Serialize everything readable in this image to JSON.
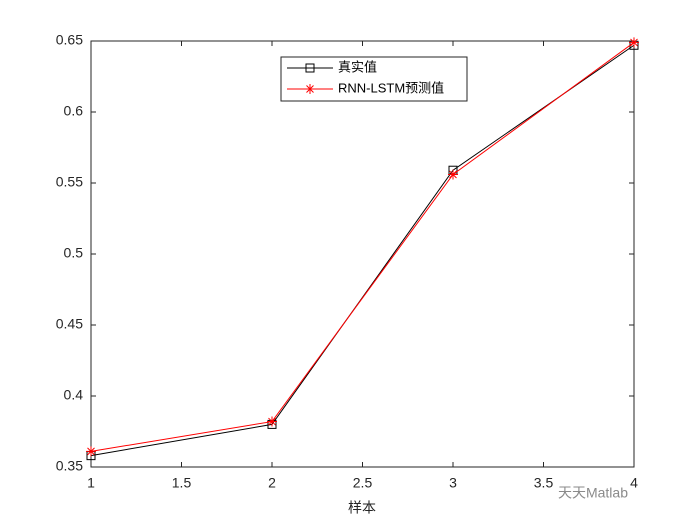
{
  "chart_data": {
    "type": "line",
    "x": [
      1,
      2,
      3,
      4
    ],
    "series": [
      {
        "name": "真实值",
        "color": "#000000",
        "marker": "square",
        "values": [
          0.358,
          0.38,
          0.559,
          0.647
        ]
      },
      {
        "name": "RNN-LSTM预测值",
        "color": "#ff0000",
        "marker": "star",
        "values": [
          0.361,
          0.382,
          0.556,
          0.649
        ]
      }
    ],
    "xlabel": "样本",
    "xlim": [
      1,
      4
    ],
    "xticks": [
      1,
      1.5,
      2,
      2.5,
      3,
      3.5,
      4
    ],
    "ylim": [
      0.35,
      0.65
    ],
    "yticks": [
      0.35,
      0.4,
      0.45,
      0.5,
      0.55,
      0.6,
      0.65
    ],
    "legend": "top",
    "watermark": "天天Matlab"
  }
}
